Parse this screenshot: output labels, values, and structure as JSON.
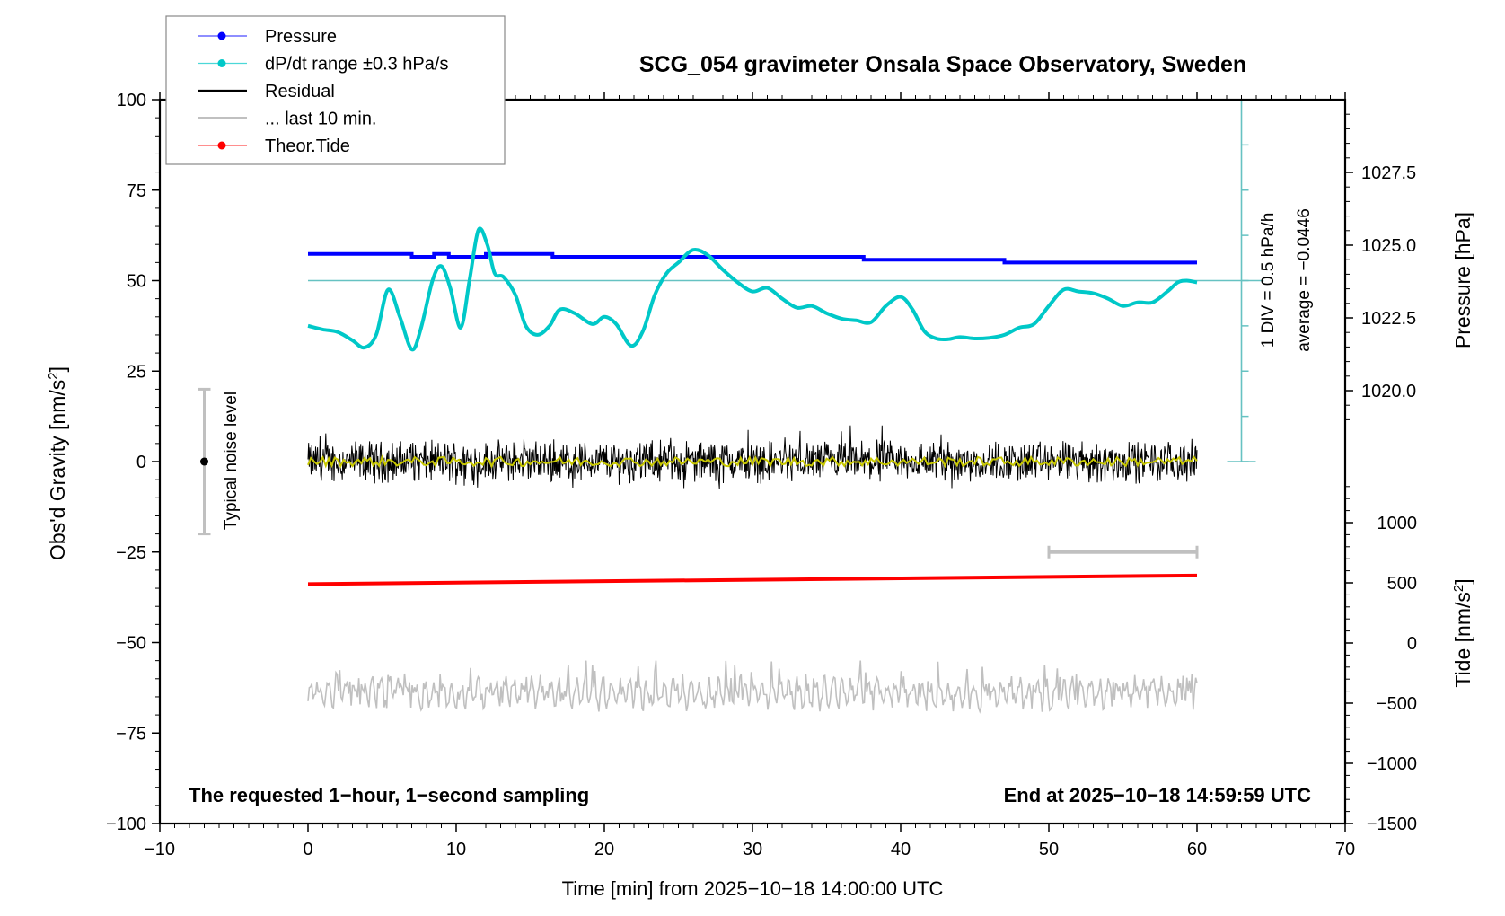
{
  "chart_data": {
    "type": "line",
    "title": "SCG_054 gravimeter Onsala Space Observatory, Sweden",
    "xlabel": "Time [min] from 2025−10−18 14:00:00 UTC",
    "ylabel_left": "Obs'd Gravity [nm/s",
    "ylabel_left_sup": "2",
    "ylabel_left_end": "]",
    "ylabel_right_pressure": "Pressure [hPa]",
    "ylabel_right_tide": "Tide [nm/s",
    "ylabel_right_tide_sup": "2",
    "ylabel_right_tide_end": "]",
    "xlim": [
      -10,
      70
    ],
    "ylim": [
      -100,
      100
    ],
    "pressure_lim": [
      1017.5,
      1030.0
    ],
    "tide_lim": [
      -1500,
      1000
    ],
    "x_ticks": [
      -10,
      0,
      10,
      20,
      30,
      40,
      50,
      60,
      70
    ],
    "x_tick_labels": [
      "−10",
      "0",
      "10",
      "20",
      "30",
      "40",
      "50",
      "60",
      "70"
    ],
    "y_ticks": [
      100,
      75,
      50,
      25,
      0,
      -25,
      -50,
      -75,
      -100
    ],
    "y_tick_labels": [
      "100",
      "75",
      "50",
      "25",
      "0",
      "−25",
      "−50",
      "−75",
      "−100"
    ],
    "pressure_ticks": [
      1027.5,
      1025.0,
      1022.5,
      1020.0
    ],
    "pressure_tick_labels": [
      "1027.5",
      "1025.0",
      "1022.5",
      "1020.0"
    ],
    "tide_ticks": [
      1000,
      500,
      0,
      -500,
      -1000,
      -1500
    ],
    "tide_tick_labels": [
      "1000",
      "500",
      "0",
      "−500",
      "−1000",
      "−1500"
    ],
    "legend": {
      "placement": "top-left",
      "entries": [
        {
          "label": "Pressure",
          "color": "#0000ff",
          "marker": "dot"
        },
        {
          "label": "dP/dt range ±0.3 hPa/s",
          "color": "#00c8c8",
          "marker": "dot"
        },
        {
          "label": "Residual",
          "color": "#000000",
          "marker": "line"
        },
        {
          "label": "... last 10 min.",
          "color": "#c0c0c0",
          "marker": "line"
        },
        {
          "label": "Theor.Tide",
          "color": "#ff0000",
          "marker": "dot"
        }
      ]
    },
    "annotations": {
      "left_bottom": "The requested 1−hour, 1−second sampling",
      "right_bottom": "End at 2025−10−18 14:59:59 UTC",
      "div_scale": "1 DIV = 0.5 hPa/h",
      "average": "average = −0.0446",
      "noise_label": "Typical noise level"
    },
    "noise_bar": {
      "x": -7,
      "center": 0,
      "half_range": 20
    },
    "last10_bar": {
      "x_start": 50,
      "x_end": 60,
      "y": -25
    },
    "dpdt_reference_y": 50,
    "series": [
      {
        "name": "Pressure",
        "axis": "pressure",
        "color": "#0000ff",
        "x": [
          0,
          7.0,
          7.0,
          8.5,
          8.5,
          9.5,
          9.5,
          10.8,
          10.8,
          12.0,
          12.0,
          16.5,
          16.5,
          37.5,
          37.5,
          47.0,
          47.0,
          60
        ],
        "y": [
          1024.7,
          1024.7,
          1024.6,
          1024.6,
          1024.7,
          1024.7,
          1024.6,
          1024.6,
          1024.6,
          1024.6,
          1024.7,
          1024.7,
          1024.6,
          1024.6,
          1024.5,
          1024.5,
          1024.4,
          1024.4
        ]
      },
      {
        "name": "dP/dt",
        "axis": "left",
        "color": "#00c8c8",
        "x": [
          0,
          1,
          2,
          3,
          3.8,
          4.6,
          5.4,
          6.2,
          7.0,
          7.6,
          8.4,
          9.0,
          9.6,
          10.3,
          10.9,
          11.5,
          12.1,
          12.6,
          13.2,
          14.0,
          14.7,
          15.5,
          16.3,
          17.0,
          18.0,
          19.2,
          20.0,
          20.8,
          21.8,
          22.6,
          23.4,
          24.2,
          25.0,
          26.0,
          27.0,
          28.0,
          29.0,
          30.0,
          31.0,
          32.0,
          33.0,
          34.0,
          35.0,
          36.0,
          37.0,
          38.0,
          39.0,
          40.0,
          40.8,
          41.6,
          42.4,
          43.2,
          44.0,
          45.0,
          46.0,
          47.0,
          48.0,
          49.0,
          50.0,
          51.0,
          52.0,
          53.0,
          54.0,
          55.0,
          56.0,
          57.0,
          58.0,
          58.7,
          59.3,
          60.0
        ],
        "y": [
          37.5,
          36.5,
          35.8,
          33.5,
          31.5,
          35.0,
          47.5,
          40.0,
          31.0,
          36.5,
          50.0,
          54.0,
          48.0,
          37.0,
          50.0,
          64.0,
          60.0,
          52.0,
          51.0,
          46.0,
          37.5,
          35.0,
          37.5,
          42.0,
          41.0,
          38.0,
          40.0,
          38.0,
          32.0,
          36.0,
          46.0,
          52.0,
          55.0,
          58.5,
          57.0,
          53.0,
          49.5,
          47.0,
          48.0,
          45.0,
          42.5,
          43.0,
          41.0,
          39.5,
          39.0,
          38.5,
          43.0,
          45.5,
          42.0,
          36.0,
          34.0,
          33.8,
          34.4,
          34.0,
          34.2,
          35.0,
          37.0,
          38.0,
          43.0,
          47.5,
          47.0,
          46.5,
          45.0,
          43.0,
          44.0,
          44.0,
          47.0,
          49.5,
          50.0,
          49.5
        ]
      },
      {
        "name": "Residual",
        "axis": "left",
        "color": "#000000",
        "x_range": [
          0,
          60
        ],
        "center": 0,
        "amplitude_range": [
          -9,
          10
        ]
      },
      {
        "name": "Residual smoothed",
        "axis": "left",
        "color": "#c8c800",
        "x_range": [
          0,
          60
        ],
        "center": 0,
        "amplitude_range": [
          -2,
          2
        ]
      },
      {
        "name": "Theor.Tide",
        "axis": "tide",
        "color": "#ff0000",
        "x": [
          0,
          60
        ],
        "y": [
          490,
          561
        ]
      },
      {
        "name": "... last 10 min.",
        "axis": "left",
        "color": "#c0c0c0",
        "x_range": [
          0,
          60
        ],
        "center": -64,
        "amplitude_range": [
          -70,
          -55
        ]
      }
    ]
  }
}
